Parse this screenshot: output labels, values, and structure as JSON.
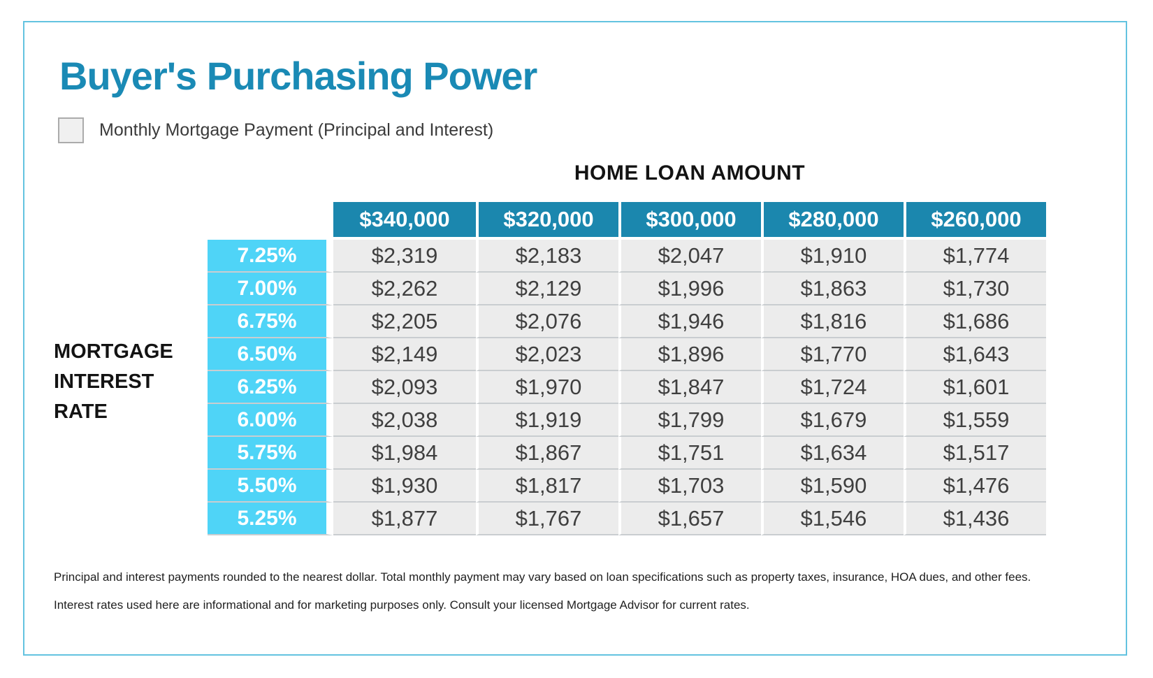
{
  "page": {
    "title": "Buyer's Purchasing Power",
    "legend": {
      "label": "Monthly Mortgage Payment (Principal and Interest)"
    },
    "disclaimer": {
      "line1": "Principal and interest payments rounded to the nearest dollar. Total monthly payment may vary based on loan specifications such as property taxes, insurance, HOA dues, and other fees.",
      "line2": "Interest rates used here are informational and for marketing purposes only. Consult your licensed Mortgage Advisor for current rates."
    }
  },
  "table": {
    "column_group_label": "HOME LOAN AMOUNT",
    "row_group_label": "MORTGAGE INTEREST RATE",
    "columns": [
      "$340,000",
      "$320,000",
      "$300,000",
      "$280,000",
      "$260,000"
    ],
    "rows": [
      {
        "rate": "7.25%",
        "values": [
          "$2,319",
          "$2,183",
          "$2,047",
          "$1,910",
          "$1,774"
        ]
      },
      {
        "rate": "7.00%",
        "values": [
          "$2,262",
          "$2,129",
          "$1,996",
          "$1,863",
          "$1,730"
        ]
      },
      {
        "rate": "6.75%",
        "values": [
          "$2,205",
          "$2,076",
          "$1,946",
          "$1,816",
          "$1,686"
        ]
      },
      {
        "rate": "6.50%",
        "values": [
          "$2,149",
          "$2,023",
          "$1,896",
          "$1,770",
          "$1,643"
        ]
      },
      {
        "rate": "6.25%",
        "values": [
          "$2,093",
          "$1,970",
          "$1,847",
          "$1,724",
          "$1,601"
        ]
      },
      {
        "rate": "6.00%",
        "values": [
          "$2,038",
          "$1,919",
          "$1,799",
          "$1,679",
          "$1,559"
        ]
      },
      {
        "rate": "5.75%",
        "values": [
          "$1,984",
          "$1,867",
          "$1,751",
          "$1,634",
          "$1,517"
        ]
      },
      {
        "rate": "5.50%",
        "values": [
          "$1,930",
          "$1,817",
          "$1,703",
          "$1,590",
          "$1,476"
        ]
      },
      {
        "rate": "5.25%",
        "values": [
          "$1,877",
          "$1,767",
          "$1,657",
          "$1,546",
          "$1,436"
        ]
      }
    ]
  },
  "chart_data": {
    "type": "table",
    "title": "Buyer's Purchasing Power",
    "subtitle": "Monthly Mortgage Payment (Principal and Interest)",
    "columns_label": "HOME LOAN AMOUNT",
    "rows_label": "MORTGAGE INTEREST RATE",
    "column_loan_amounts": [
      340000,
      320000,
      300000,
      280000,
      260000
    ],
    "row_interest_rates_pct": [
      7.25,
      7.0,
      6.75,
      6.5,
      6.25,
      6.0,
      5.75,
      5.5,
      5.25
    ],
    "monthly_payments": [
      [
        2319,
        2183,
        2047,
        1910,
        1774
      ],
      [
        2262,
        2129,
        1996,
        1863,
        1730
      ],
      [
        2205,
        2076,
        1946,
        1816,
        1686
      ],
      [
        2149,
        2023,
        1896,
        1770,
        1643
      ],
      [
        2093,
        1970,
        1847,
        1724,
        1601
      ],
      [
        2038,
        1919,
        1799,
        1679,
        1559
      ],
      [
        1984,
        1867,
        1751,
        1634,
        1517
      ],
      [
        1930,
        1817,
        1703,
        1590,
        1476
      ],
      [
        1877,
        1767,
        1657,
        1546,
        1436
      ]
    ]
  },
  "colors": {
    "title_blue": "#1a8ab5",
    "header_teal": "#1b87ae",
    "rate_cyan": "#4fd4f7",
    "cell_gray": "#ececec",
    "card_border_blue": "#63c3e0",
    "separator_gray": "#c9cdd0"
  }
}
